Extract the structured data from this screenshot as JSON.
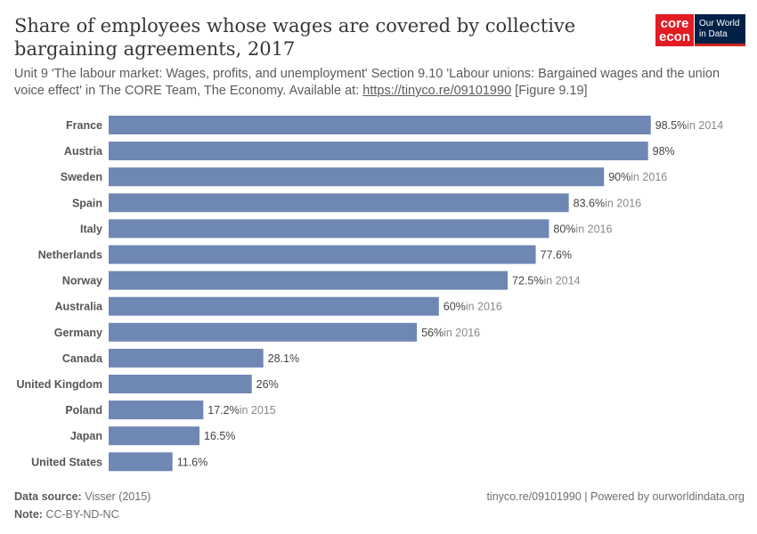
{
  "title": "Share of employees whose wages are covered by collective bargaining agreements, 2017",
  "subtitle_text": "Unit 9 'The labour market: Wages, profits, and unemployment' Section 9.10 'Labour unions: Bargained wages and the union voice effect' in The CORE Team, The Economy. Available at: ",
  "subtitle_link": "https://tinyco.re/09101990",
  "subtitle_end": " [Figure 9.19]",
  "logos": {
    "core_line1": "core",
    "core_line2": "econ",
    "owid_line1": "Our World",
    "owid_line2": "in Data"
  },
  "colors": {
    "bar": "#6e87b3",
    "logo_core": "#e31b23",
    "logo_owid": "#002147"
  },
  "footer": {
    "source_label": "Data source:",
    "source_value": "Visser (2015)",
    "note_label": "Note:",
    "note_value": "CC-BY-ND-NC",
    "right": "tinyco.re/09101990 | Powered by ourworldindata.org"
  },
  "chart_data": {
    "type": "bar",
    "orientation": "horizontal",
    "categories": [
      "France",
      "Austria",
      "Sweden",
      "Spain",
      "Italy",
      "Netherlands",
      "Norway",
      "Australia",
      "Germany",
      "Canada",
      "United Kingdom",
      "Poland",
      "Japan",
      "United States"
    ],
    "values": [
      98.5,
      98,
      90,
      83.6,
      80,
      77.6,
      72.5,
      60,
      56,
      28.1,
      26,
      17.2,
      16.5,
      11.6
    ],
    "value_labels": [
      "98.5%",
      "98%",
      "90%",
      "83.6%",
      "80%",
      "77.6%",
      "72.5%",
      "60%",
      "56%",
      "28.1%",
      "26%",
      "17.2%",
      "16.5%",
      "11.6%"
    ],
    "year_notes": [
      "in 2014",
      "",
      "in 2016",
      "in 2016",
      "in 2016",
      "",
      "in 2014",
      "in 2016",
      "in 2016",
      "",
      "",
      "in 2015",
      "",
      ""
    ],
    "unit": "%",
    "xlim": [
      0,
      100
    ],
    "grid": false
  }
}
